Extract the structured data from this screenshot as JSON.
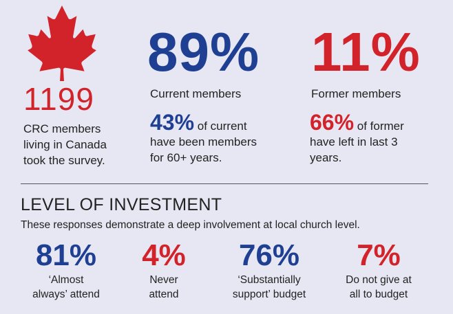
{
  "colors": {
    "background": "#e7e7f3",
    "blue": "#1f3f93",
    "red": "#d2232a"
  },
  "icons": {
    "maple_leaf": "maple-leaf-icon"
  },
  "survey": {
    "count": "1199",
    "description_lines": [
      "CRC members",
      "living in Canada",
      "took the survey."
    ]
  },
  "current": {
    "percent": "89%",
    "label": "Current members",
    "sub_percent": "43%",
    "sub_text_1": " of current",
    "sub_text_2": "have been members",
    "sub_text_3": "for 60+ years."
  },
  "former": {
    "percent": "11%",
    "label": "Former members",
    "sub_percent": "66%",
    "sub_text_1": " of former",
    "sub_text_2": "have left in last 3",
    "sub_text_3": "years."
  },
  "investment": {
    "title": "LEVEL OF INVESTMENT",
    "description": "These responses demonstrate a deep involvement at local church level.",
    "stats": [
      {
        "value": "81%",
        "caption_1": "‘Almost",
        "caption_2": "always’ attend"
      },
      {
        "value": "4%",
        "caption_1": "Never",
        "caption_2": "attend"
      },
      {
        "value": "76%",
        "caption_1": "‘Substantially",
        "caption_2": "support’ budget"
      },
      {
        "value": "7%",
        "caption_1": "Do not give at",
        "caption_2": "all to budget"
      }
    ]
  }
}
